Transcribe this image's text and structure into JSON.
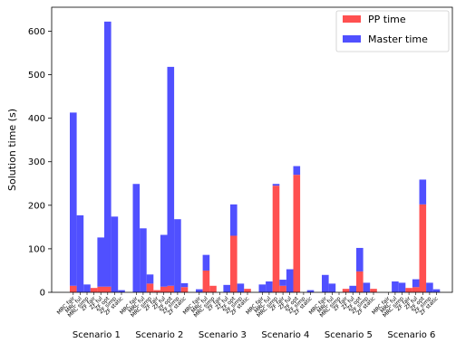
{
  "chart_data": {
    "type": "bar",
    "stacked": true,
    "title": "",
    "xlabel": "",
    "ylabel": "Solution time (s)",
    "ylim": [
      0,
      655
    ],
    "yticks": [
      0,
      100,
      200,
      300,
      400,
      500,
      600
    ],
    "grid": false,
    "legend": {
      "placement": "top-right",
      "entries": [
        "PP time",
        "Master time"
      ]
    },
    "colors": {
      "PP time": "#ff5050",
      "Master time": "#5050ff"
    },
    "categories": [
      "MRC fair",
      "MRC ful",
      "MRC simp",
      "ZF fair",
      "ZF ful",
      "ZF opt",
      "ZF simp",
      "ZF static"
    ],
    "groups": [
      {
        "name": "Scenario 1",
        "pp": [
          15,
          0,
          0,
          10,
          13,
          13,
          0,
          0
        ],
        "master": [
          398,
          177,
          18,
          0,
          113,
          609,
          174,
          5
        ]
      },
      {
        "name": "Scenario 2",
        "pp": [
          0,
          0,
          20,
          5,
          13,
          15,
          0,
          12
        ],
        "master": [
          249,
          147,
          21,
          0,
          119,
          503,
          168,
          9
        ]
      },
      {
        "name": "Scenario 3",
        "pp": [
          0,
          50,
          15,
          0,
          0,
          130,
          0,
          8
        ],
        "master": [
          7,
          36,
          0,
          0,
          17,
          72,
          20,
          0
        ]
      },
      {
        "name": "Scenario 4",
        "pp": [
          0,
          0,
          245,
          15,
          0,
          270,
          0,
          0
        ],
        "master": [
          18,
          25,
          4,
          14,
          53,
          20,
          0,
          5
        ]
      },
      {
        "name": "Scenario 5",
        "pp": [
          0,
          0,
          0,
          8,
          0,
          48,
          0,
          8
        ],
        "master": [
          40,
          20,
          0,
          0,
          15,
          54,
          22,
          0
        ]
      },
      {
        "name": "Scenario 6",
        "pp": [
          0,
          0,
          0,
          10,
          12,
          202,
          0,
          0
        ],
        "master": [
          0,
          25,
          22,
          0,
          18,
          57,
          22,
          7
        ]
      }
    ]
  }
}
